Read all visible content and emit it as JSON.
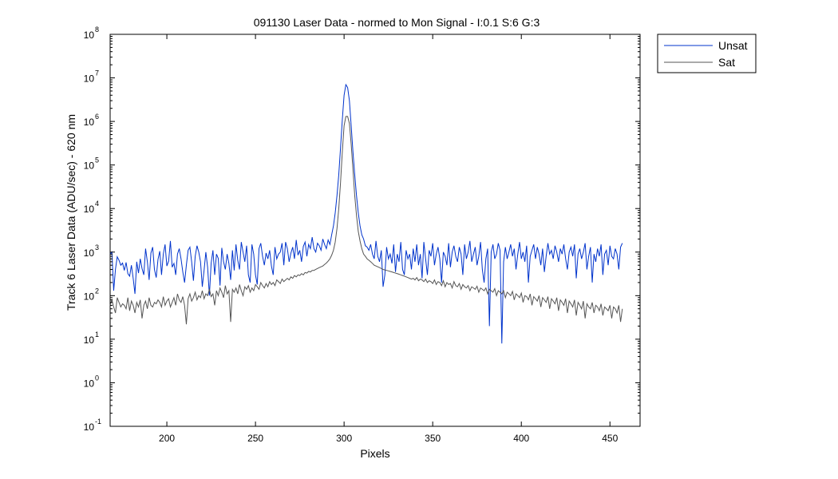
{
  "chart_data": {
    "type": "line",
    "title": "091130 Laser Data - normed to Mon Signal -   I:0.1  S:6  G:3",
    "xlabel": "Pixels",
    "ylabel": "Track 6 Laser Data (ADU/sec) - 620 nm",
    "xlim": [
      168,
      467
    ],
    "ylim": [
      0.1,
      100000000
    ],
    "yscale": "log",
    "grid": false,
    "legend_position": "outside-top-right",
    "x_ticks": [
      200,
      250,
      300,
      350,
      400,
      450
    ],
    "y_ticks": [
      {
        "value": 0.1,
        "base": "10",
        "exp": "-1"
      },
      {
        "value": 1,
        "base": "10",
        "exp": "0"
      },
      {
        "value": 10,
        "base": "10",
        "exp": "1"
      },
      {
        "value": 100,
        "base": "10",
        "exp": "2"
      },
      {
        "value": 1000,
        "base": "10",
        "exp": "3"
      },
      {
        "value": 10000,
        "base": "10",
        "exp": "4"
      },
      {
        "value": 100000,
        "base": "10",
        "exp": "5"
      },
      {
        "value": 1000000,
        "base": "10",
        "exp": "6"
      },
      {
        "value": 10000000,
        "base": "10",
        "exp": "7"
      },
      {
        "value": 100000000,
        "base": "10",
        "exp": "8"
      }
    ],
    "series": [
      {
        "name": "Unsat",
        "color": "#0033cc",
        "x_start": 168,
        "x_step": 1,
        "values": [
          900,
          1000,
          130,
          400,
          780,
          650,
          500,
          560,
          380,
          580,
          320,
          280,
          500,
          250,
          110,
          600,
          330,
          700,
          420,
          300,
          1200,
          600,
          230,
          950,
          1300,
          400,
          260,
          680,
          1050,
          300,
          900,
          1500,
          480,
          620,
          1800,
          450,
          550,
          300,
          900,
          1200,
          700,
          350,
          200,
          500,
          1100,
          1300,
          600,
          220,
          800,
          1400,
          1000,
          600,
          160,
          380,
          1000,
          450,
          100,
          560,
          1100,
          300,
          900,
          720,
          170,
          1250,
          600,
          400,
          900,
          550,
          230,
          1100,
          380,
          1500,
          650,
          400,
          1700,
          1000,
          600,
          1400,
          300,
          200,
          1500,
          900,
          300,
          180,
          1200,
          1600,
          800,
          500,
          950,
          700,
          1100,
          480,
          300,
          1300,
          700,
          900,
          1000,
          1600,
          500,
          1700,
          1200,
          600,
          950,
          1300,
          700,
          1900,
          850,
          1100,
          600,
          1350,
          1700,
          800,
          1500,
          1200,
          2200,
          1200,
          1000,
          1600,
          1400,
          1100,
          2000,
          1500,
          1200,
          1900,
          1500,
          2500,
          4000,
          8000,
          20000,
          60000,
          250000,
          1100000,
          4000000,
          7000000,
          6000000,
          3000000,
          800000,
          200000,
          60000,
          20000,
          8000,
          4000,
          2500,
          2000,
          1400,
          1300,
          1100,
          1500,
          900,
          700,
          1800,
          800,
          600,
          1100,
          160,
          300,
          1300,
          700,
          900,
          550,
          1500,
          350,
          900,
          600,
          1700,
          400,
          300,
          1100,
          700,
          900,
          400,
          1200,
          600,
          1500,
          500,
          900,
          250,
          1700,
          700,
          300,
          1100,
          800,
          1600,
          500,
          900,
          1300,
          700,
          200,
          1000,
          800,
          500,
          1600,
          450,
          1000,
          1400,
          800,
          600,
          1300,
          900,
          300,
          1500,
          700,
          1000,
          1800,
          600,
          900,
          1300,
          500,
          800,
          1700,
          400,
          200,
          700,
          1200,
          20,
          1000,
          1500,
          700,
          900,
          1600,
          1100,
          8,
          600,
          1300,
          700,
          1000,
          1500,
          800,
          1200,
          400,
          900,
          1700,
          700,
          1000,
          600,
          1400,
          200,
          800,
          1100,
          1500,
          700,
          1300,
          900,
          500,
          1200,
          350,
          800,
          1600,
          900,
          1100,
          700,
          1400,
          1000,
          600,
          1200,
          900,
          1500,
          700,
          400,
          1000,
          1300,
          800,
          1500,
          250,
          900,
          1200,
          700,
          1000,
          1600,
          400,
          800,
          1300,
          200,
          900,
          600,
          1200,
          800,
          1500,
          300,
          900,
          1100,
          500,
          1400,
          800,
          700,
          1200,
          900,
          400,
          1300,
          1600
        ]
      },
      {
        "name": "Sat",
        "color": "#555555",
        "x_start": 168,
        "x_step": 1,
        "values": [
          60,
          80,
          55,
          40,
          90,
          70,
          55,
          65,
          60,
          50,
          90,
          45,
          75,
          60,
          40,
          70,
          55,
          80,
          30,
          60,
          75,
          50,
          90,
          60,
          55,
          70,
          65,
          80,
          70,
          55,
          95,
          60,
          75,
          85,
          55,
          70,
          90,
          60,
          110,
          80,
          70,
          95,
          60,
          22,
          85,
          110,
          75,
          90,
          120,
          80,
          100,
          90,
          130,
          85,
          110,
          100,
          140,
          95,
          110,
          60,
          130,
          100,
          150,
          120,
          90,
          170,
          110,
          130,
          25,
          140,
          120,
          150,
          110,
          180,
          130,
          100,
          160,
          140,
          170,
          120,
          150,
          130,
          180,
          160,
          140,
          200,
          170,
          150,
          190,
          160,
          210,
          180,
          200,
          170,
          230,
          210,
          190,
          240,
          210,
          230,
          250,
          230,
          270,
          250,
          290,
          270,
          300,
          290,
          320,
          300,
          340,
          330,
          360,
          350,
          380,
          380,
          400,
          420,
          440,
          460,
          480,
          520,
          560,
          620,
          700,
          850,
          1100,
          1700,
          3500,
          10000,
          40000,
          200000,
          800000,
          1300000,
          1300000,
          900000,
          300000,
          80000,
          20000,
          7000,
          3000,
          1800,
          1200,
          900,
          800,
          700,
          650,
          600,
          550,
          500,
          480,
          460,
          440,
          420,
          400,
          390,
          380,
          370,
          360,
          350,
          340,
          330,
          320,
          310,
          300,
          290,
          280,
          270,
          260,
          250,
          240,
          250,
          230,
          260,
          220,
          240,
          230,
          210,
          240,
          200,
          220,
          210,
          190,
          230,
          180,
          210,
          200,
          170,
          220,
          160,
          200,
          180,
          190,
          150,
          210,
          170,
          160,
          190,
          140,
          180,
          160,
          150,
          170,
          130,
          160,
          150,
          140,
          165,
          120,
          150,
          140,
          130,
          150,
          110,
          140,
          130,
          120,
          145,
          100,
          130,
          120,
          110,
          130,
          90,
          120,
          110,
          100,
          125,
          80,
          110,
          100,
          90,
          115,
          70,
          100,
          95,
          80,
          110,
          60,
          95,
          85,
          75,
          100,
          55,
          90,
          80,
          70,
          95,
          50,
          85,
          75,
          65,
          90,
          45,
          80,
          70,
          60,
          85,
          40,
          75,
          65,
          55,
          80,
          35,
          70,
          60,
          50,
          75,
          30,
          65,
          55,
          50,
          70,
          40,
          60,
          55,
          45,
          65,
          35,
          55,
          50,
          45,
          60,
          30,
          55,
          50,
          40,
          60,
          25,
          50
        ]
      }
    ]
  }
}
